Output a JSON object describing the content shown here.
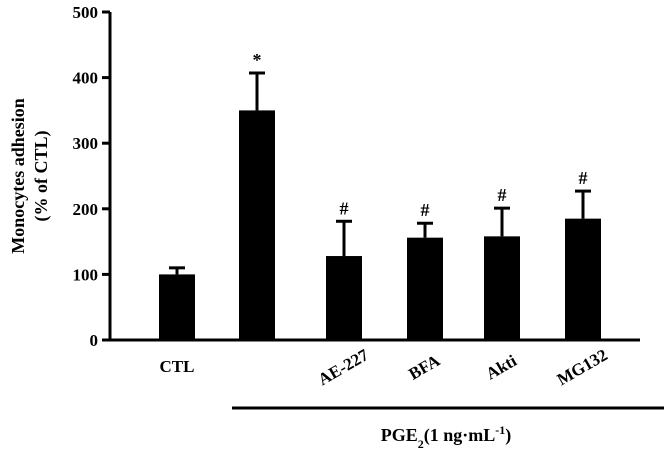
{
  "chart_data": {
    "type": "bar",
    "categories": [
      "CTL",
      "",
      "AE-227",
      "BFA",
      "Akti",
      "MG132"
    ],
    "values": [
      100,
      350,
      128,
      156,
      158,
      185
    ],
    "errors": [
      10,
      57,
      53,
      22,
      43,
      42
    ],
    "annotations": [
      "",
      "*",
      "#",
      "#",
      "#",
      "#"
    ],
    "ylabel_line1": "Monocytes adhesion",
    "ylabel_line2": "(% of CTL)",
    "ylim": [
      0,
      500
    ],
    "yticks": [
      "0",
      "100",
      "200",
      "300",
      "400",
      "500"
    ],
    "treatment_label": {
      "prefix": "PGE",
      "prefix_sub": "2",
      "main": "(1 ng·mL",
      "sup": "-1",
      "suffix": ")"
    },
    "bar_color": "#000000",
    "grid": false
  }
}
